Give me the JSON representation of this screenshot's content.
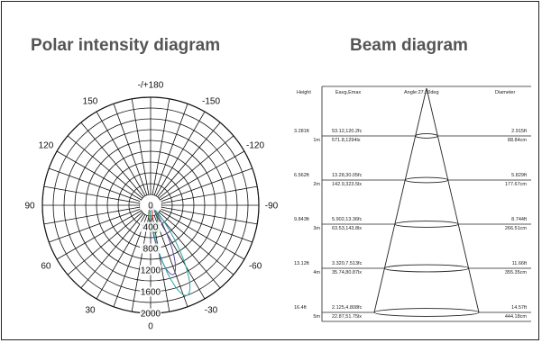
{
  "polar": {
    "title": "Polar intensity diagram",
    "angle_labels": [
      {
        "deg": 180,
        "text": "-/+180"
      },
      {
        "deg": -150,
        "text": "-150"
      },
      {
        "deg": 150,
        "text": "150"
      },
      {
        "deg": -120,
        "text": "-120"
      },
      {
        "deg": 120,
        "text": "120"
      },
      {
        "deg": -90,
        "text": "-90"
      },
      {
        "deg": 90,
        "text": "90"
      },
      {
        "deg": -60,
        "text": "-60"
      },
      {
        "deg": 60,
        "text": "60"
      },
      {
        "deg": -30,
        "text": "-30"
      },
      {
        "deg": 30,
        "text": "30"
      },
      {
        "deg": 0,
        "text": "0"
      }
    ],
    "radial_labels": [
      "0",
      "400",
      "800",
      "1200",
      "1600",
      "2000"
    ],
    "curves": [
      {
        "color": "#c62828",
        "plane": 0,
        "peak": 300,
        "halfwidth": 16
      },
      {
        "color": "#2e7d32",
        "plane": 10,
        "peak": 520,
        "halfwidth": 20
      },
      {
        "color": "#5d4c9e",
        "plane": 18,
        "peak": 1350,
        "halfwidth": 13
      },
      {
        "color": "#2aa6a6",
        "plane": 22,
        "peak": 1800,
        "halfwidth": 14
      }
    ]
  },
  "beam": {
    "title": "Beam diagram",
    "header": {
      "height": "Height",
      "eavg": "Eavg,Emax",
      "angle": "Angle:27.00deg",
      "diameter": "Diameter"
    },
    "rows": [
      {
        "h_ft": "3.281ft",
        "h_m": "1m",
        "lux_fc": "53.12,120.2fc",
        "lux_lx": "571.8,1294lx",
        "d_ft": "2.915ft",
        "d_cm": "88.84cm"
      },
      {
        "h_ft": "6.562ft",
        "h_m": "2m",
        "lux_fc": "13.28,30.05fc",
        "lux_lx": "142.9,323.5lx",
        "d_ft": "5.829ft",
        "d_cm": "177.67cm"
      },
      {
        "h_ft": "9.843ft",
        "h_m": "3m",
        "lux_fc": "5.902,13.36fc",
        "lux_lx": "63.53,143.8lx",
        "d_ft": "8.744ft",
        "d_cm": "266.51cm"
      },
      {
        "h_ft": "13.12ft",
        "h_m": "4m",
        "lux_fc": "3.320,7.513fc",
        "lux_lx": "35.74,80.87lx",
        "d_ft": "11.66ft",
        "d_cm": "355.35cm"
      },
      {
        "h_ft": "16.4ft",
        "h_m": "5m",
        "lux_fc": "2.125,4.808fc",
        "lux_lx": "22.87,51.75lx",
        "d_ft": "14.57ft",
        "d_cm": "444.18cm"
      }
    ]
  }
}
